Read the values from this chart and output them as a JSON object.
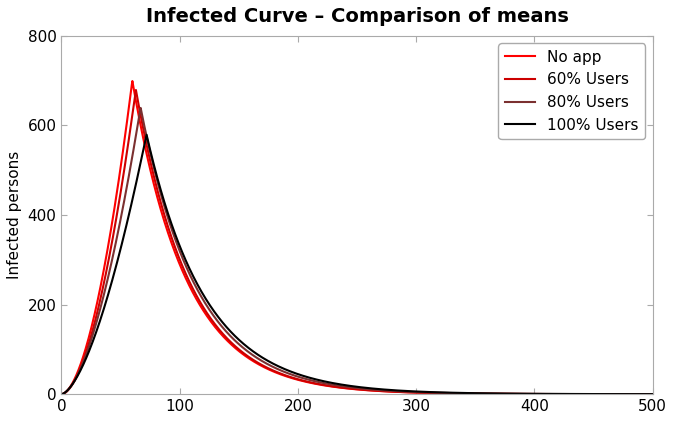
{
  "title": "Infected Curve – Comparison of means",
  "ylabel": "Infected persons",
  "xlabel": "",
  "xlim": [
    0,
    500
  ],
  "ylim": [
    0,
    800
  ],
  "xticks": [
    0,
    100,
    200,
    300,
    400,
    500
  ],
  "yticks": [
    0,
    200,
    400,
    600,
    800
  ],
  "background_color": "#ffffff",
  "lines": [
    {
      "label": "No app",
      "color": "#FF0000",
      "peak": 700,
      "peak_x": 60,
      "rise_shape": 1.8,
      "fall_shape": 0.022
    },
    {
      "label": "60% Users",
      "color": "#CC0000",
      "peak": 680,
      "peak_x": 63,
      "rise_shape": 1.8,
      "fall_shape": 0.022
    },
    {
      "label": "80% Users",
      "color": "#7B3030",
      "peak": 640,
      "peak_x": 67,
      "rise_shape": 1.7,
      "fall_shape": 0.021
    },
    {
      "label": "100% Users",
      "color": "#000000",
      "peak": 580,
      "peak_x": 72,
      "rise_shape": 1.6,
      "fall_shape": 0.02
    }
  ],
  "legend_loc": "upper right",
  "title_fontsize": 14,
  "axis_fontsize": 11,
  "tick_fontsize": 11,
  "linewidth": 1.5
}
